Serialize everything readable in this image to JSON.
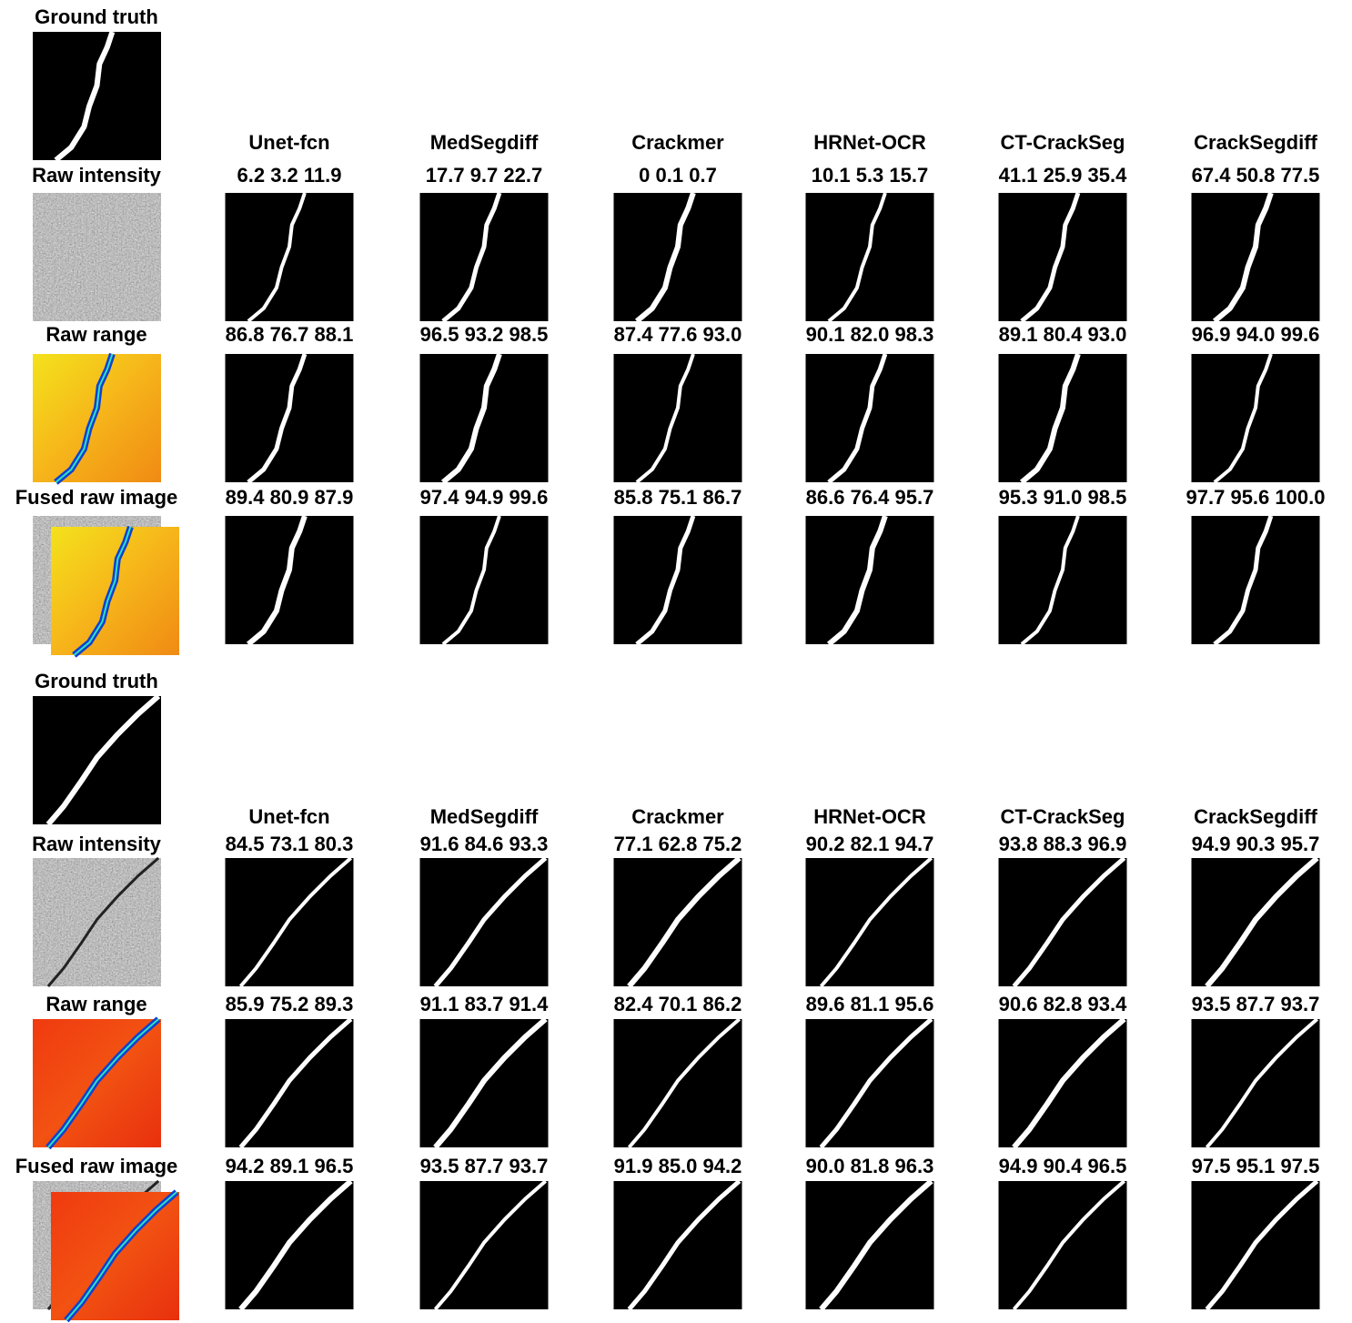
{
  "groups": [
    {
      "ground_truth_label": "Ground truth",
      "methods": [
        "Unet-fcn",
        "MedSegdiff",
        "Crackmer",
        "HRNet-OCR",
        "CT-CrackSeg",
        "CrackSegdiff"
      ],
      "rows": [
        {
          "label": "Raw intensity",
          "scores": [
            "6.2 3.2 11.9",
            "17.7 9.7 22.7",
            "0 0.1 0.7",
            "10.1 5.3 15.7",
            "41.1 25.9 35.4",
            "67.4 50.8 77.5"
          ]
        },
        {
          "label": "Raw range",
          "scores": [
            "86.8 76.7 88.1",
            "96.5 93.2 98.5",
            "87.4 77.6 93.0",
            "90.1 82.0 98.3",
            "89.1 80.4 93.0",
            "96.9 94.0 99.6"
          ]
        },
        {
          "label": "Fused raw image",
          "scores": [
            "89.4 80.9 87.9",
            "97.4 94.9 99.6",
            "85.8 75.1 86.7",
            "86.6 76.4 95.7",
            "95.3 91.0 98.5",
            "97.7 95.6 100.0"
          ]
        }
      ]
    },
    {
      "ground_truth_label": "Ground truth",
      "methods": [
        "Unet-fcn",
        "MedSegdiff",
        "Crackmer",
        "HRNet-OCR",
        "CT-CrackSeg",
        "CrackSegdiff"
      ],
      "rows": [
        {
          "label": "Raw intensity",
          "scores": [
            "84.5 73.1 80.3",
            "91.6 84.6 93.3",
            "77.1 62.8 75.2",
            "90.2 82.1 94.7",
            "93.8 88.3 96.9",
            "94.9 90.3 95.7"
          ]
        },
        {
          "label": "Raw range",
          "scores": [
            "85.9 75.2 89.3",
            "91.1 83.7 91.4",
            "82.4 70.1 86.2",
            "89.6 81.1 95.6",
            "90.6 82.8 93.4",
            "93.5 87.7 93.7"
          ]
        },
        {
          "label": "Fused raw image",
          "scores": [
            "94.2 89.1  96.5",
            "93.5 87.7 93.7",
            "91.9 85.0 94.2",
            "90.0 81.8 96.3",
            "94.9 90.4 96.5",
            "97.5 95.1 97.5"
          ]
        }
      ]
    }
  ]
}
